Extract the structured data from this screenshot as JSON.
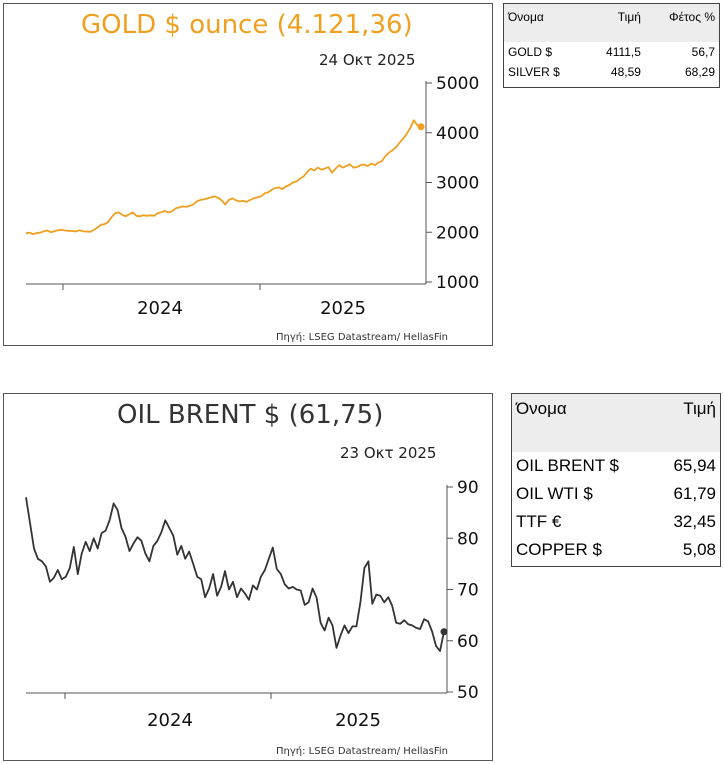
{
  "charts": [
    {
      "title": "GOLD $ ounce (4.121,36)",
      "date": "24 Οκτ 2025",
      "source": "Πηγή: LSEG Datastream/ HellasFin",
      "color": "#F0A020"
    },
    {
      "title": "OIL BRENT $ (61,75)",
      "date": "23 Οκτ 2025",
      "source": "Πηγή: LSEG Datastream/ HellasFin",
      "color": "#333333"
    }
  ],
  "table_gold": {
    "headers": [
      "Όνομα",
      "Τιμή",
      "Φέτος %"
    ],
    "rows": [
      [
        "GOLD $",
        "4111,5",
        "56,7"
      ],
      [
        "SILVER $",
        "48,59",
        "68,29"
      ]
    ]
  },
  "table_oil": {
    "headers": [
      "Όνομα",
      "Τιμή"
    ],
    "rows": [
      [
        "OIL BRENT $",
        "65,94"
      ],
      [
        "OIL WTI $",
        "61,79"
      ],
      [
        "TTF €",
        "32,45"
      ],
      [
        "COPPER $",
        "5,08"
      ]
    ]
  },
  "chart_data": [
    {
      "type": "line",
      "title": "GOLD $ ounce (4.121,36)",
      "subtitle": "24 Οκτ 2025",
      "x_tick_labels": [
        "2024",
        "2025"
      ],
      "ylim": [
        1000,
        5000
      ],
      "y_ticks": [
        1000,
        2000,
        3000,
        4000,
        5000
      ],
      "series": [
        {
          "values": [
            1980,
            1990,
            1960,
            1985,
            1990,
            2020,
            2035,
            2000,
            2020,
            2040,
            2050,
            2035,
            2030,
            2025,
            2015,
            2040,
            2020,
            2015,
            2010,
            2045,
            2090,
            2150,
            2160,
            2200,
            2300,
            2380,
            2400,
            2350,
            2320,
            2360,
            2400,
            2330,
            2320,
            2340,
            2330,
            2340,
            2330,
            2380,
            2400,
            2430,
            2400,
            2420,
            2480,
            2500,
            2520,
            2510,
            2530,
            2560,
            2620,
            2650,
            2660,
            2680,
            2700,
            2720,
            2690,
            2640,
            2560,
            2650,
            2680,
            2640,
            2620,
            2630,
            2610,
            2650,
            2680,
            2700,
            2720,
            2780,
            2800,
            2850,
            2890,
            2900,
            2870,
            2920,
            2950,
            3000,
            3020,
            3080,
            3120,
            3210,
            3280,
            3240,
            3300,
            3260,
            3280,
            3310,
            3200,
            3280,
            3350,
            3300,
            3330,
            3370,
            3300,
            3310,
            3350,
            3360,
            3330,
            3380,
            3350,
            3400,
            3430,
            3530,
            3600,
            3650,
            3710,
            3800,
            3880,
            3980,
            4100,
            4250,
            4150,
            4121
          ],
          "end_marker": true
        }
      ]
    },
    {
      "type": "line",
      "title": "OIL BRENT $ (61,75)",
      "subtitle": "23 Οκτ 2025",
      "x_tick_labels": [
        "2024",
        "2025"
      ],
      "ylim": [
        50,
        90
      ],
      "y_ticks": [
        50,
        60,
        70,
        80,
        90
      ],
      "series": [
        {
          "values": [
            88,
            83,
            78,
            76,
            75.5,
            74.5,
            71.5,
            72.3,
            73.8,
            72,
            72.5,
            74.2,
            78.3,
            73,
            77,
            79.3,
            77.5,
            80,
            78,
            81,
            81.5,
            83.5,
            86.8,
            85.5,
            82,
            80.3,
            77.5,
            79,
            80.2,
            79.5,
            77,
            75.5,
            78.5,
            79.5,
            81.2,
            83.5,
            82,
            80.5,
            76.8,
            78.5,
            76,
            77.4,
            75,
            72.5,
            72,
            68.5,
            70.2,
            73,
            68.8,
            70.5,
            73.6,
            70,
            71.5,
            68.5,
            70.2,
            69.2,
            68,
            70.8,
            70,
            72.5,
            73.8,
            76,
            78.2,
            74,
            73,
            71,
            70.2,
            70.5,
            70,
            69.8,
            67,
            67.5,
            70.2,
            68.4,
            63.5,
            62,
            64.5,
            63,
            58.6,
            61,
            63,
            61.5,
            62.8,
            62.8,
            67.5,
            74.2,
            75.5,
            67.2,
            69,
            68.8,
            67.5,
            68.5,
            66.8,
            63.5,
            63.3,
            64,
            63.2,
            63,
            62.5,
            62.3,
            64.2,
            63.8,
            61.8,
            59,
            58,
            61.75
          ],
          "end_marker": true
        }
      ]
    }
  ]
}
